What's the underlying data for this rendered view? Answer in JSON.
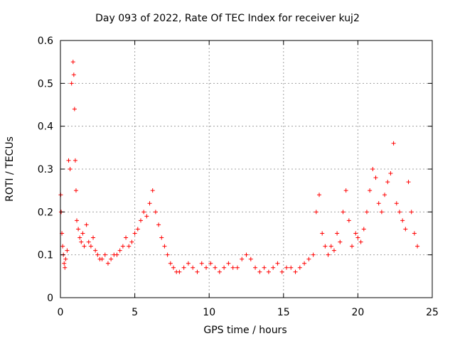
{
  "chart_data": {
    "type": "scatter",
    "title": "Day 093 of 2022, Rate Of TEC Index for receiver kuj2",
    "xlabel": "GPS time / hours",
    "ylabel": "ROTI / TECUs",
    "xlim": [
      0,
      25
    ],
    "ylim": [
      0,
      0.6
    ],
    "xticks": [
      0,
      5,
      10,
      15,
      20,
      25
    ],
    "yticks": [
      0,
      0.1,
      0.2,
      0.3,
      0.4,
      0.5,
      0.6
    ],
    "grid": true,
    "marker": "+",
    "color": "#ff0000",
    "series": [
      {
        "x": [
          0.02,
          0.05,
          0.1,
          0.15,
          0.2,
          0.25,
          0.3,
          0.35,
          0.45,
          0.55,
          0.65,
          0.75,
          0.85,
          0.9,
          0.95,
          1.0,
          1.05,
          1.1,
          1.2,
          1.3,
          1.4,
          1.5,
          1.6,
          1.75,
          1.9,
          2.05,
          2.2,
          2.35,
          2.5,
          2.65,
          2.8,
          3.0,
          3.2,
          3.4,
          3.6,
          3.8,
          4.0,
          4.2,
          4.4,
          4.6,
          4.8,
          5.0,
          5.2,
          5.4,
          5.6,
          5.8,
          6.0,
          6.2,
          6.4,
          6.6,
          6.8,
          7.0,
          7.2,
          7.4,
          7.6,
          7.8,
          8.0,
          8.3,
          8.6,
          8.9,
          9.2,
          9.5,
          9.8,
          10.1,
          10.4,
          10.7,
          11.0,
          11.3,
          11.6,
          11.9,
          12.2,
          12.5,
          12.8,
          13.1,
          13.4,
          13.7,
          14.0,
          14.3,
          14.6,
          14.9,
          15.2,
          15.5,
          15.8,
          16.1,
          16.4,
          16.7,
          17.0,
          17.2,
          17.4,
          17.6,
          17.8,
          18.0,
          18.2,
          18.4,
          18.6,
          18.8,
          19.0,
          19.2,
          19.4,
          19.6,
          19.85,
          20.0,
          20.2,
          20.4,
          20.6,
          20.8,
          21.0,
          21.2,
          21.4,
          21.6,
          21.8,
          22.0,
          22.2,
          22.4,
          22.6,
          22.8,
          23.0,
          23.2,
          23.4,
          23.6,
          23.8,
          24.0
        ],
        "y": [
          0.24,
          0.2,
          0.15,
          0.12,
          0.1,
          0.08,
          0.07,
          0.09,
          0.11,
          0.32,
          0.3,
          0.5,
          0.55,
          0.52,
          0.44,
          0.32,
          0.25,
          0.18,
          0.16,
          0.14,
          0.13,
          0.15,
          0.12,
          0.17,
          0.13,
          0.12,
          0.14,
          0.11,
          0.1,
          0.09,
          0.09,
          0.1,
          0.08,
          0.09,
          0.1,
          0.1,
          0.11,
          0.12,
          0.14,
          0.12,
          0.13,
          0.15,
          0.16,
          0.18,
          0.2,
          0.19,
          0.22,
          0.25,
          0.2,
          0.17,
          0.14,
          0.12,
          0.1,
          0.08,
          0.07,
          0.06,
          0.06,
          0.07,
          0.08,
          0.07,
          0.06,
          0.08,
          0.07,
          0.08,
          0.07,
          0.06,
          0.07,
          0.08,
          0.07,
          0.07,
          0.09,
          0.1,
          0.09,
          0.07,
          0.06,
          0.07,
          0.06,
          0.07,
          0.08,
          0.06,
          0.07,
          0.07,
          0.06,
          0.07,
          0.08,
          0.09,
          0.1,
          0.2,
          0.24,
          0.15,
          0.12,
          0.1,
          0.12,
          0.11,
          0.15,
          0.13,
          0.2,
          0.25,
          0.18,
          0.12,
          0.15,
          0.14,
          0.13,
          0.16,
          0.2,
          0.25,
          0.3,
          0.28,
          0.22,
          0.2,
          0.24,
          0.27,
          0.29,
          0.36,
          0.22,
          0.2,
          0.18,
          0.16,
          0.27,
          0.2,
          0.15,
          0.12
        ]
      }
    ]
  }
}
